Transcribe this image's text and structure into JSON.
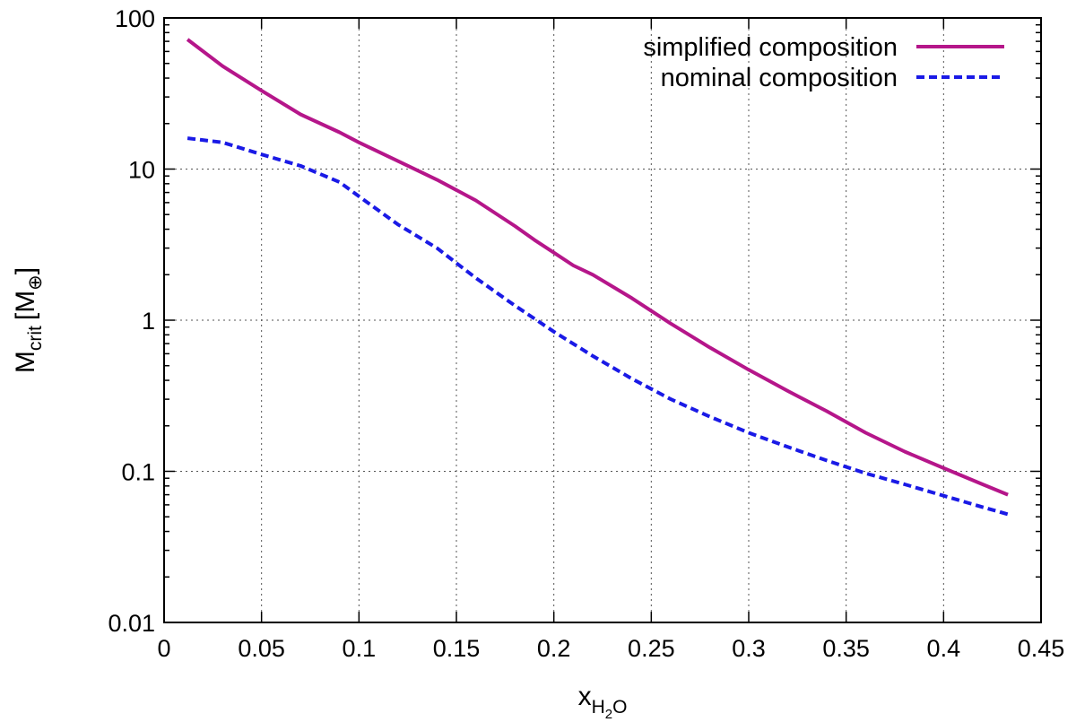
{
  "chart_data": {
    "type": "line",
    "title": "",
    "xlabel": {
      "main": "x",
      "sub": "H",
      "sub2": "2",
      "sub3": "O"
    },
    "ylabel": {
      "main": "M",
      "sub": "crit",
      "unit": "[M",
      "unit_sub": "⊕",
      "unit_end": "]"
    },
    "x_range": [
      0,
      0.45
    ],
    "y_range": [
      0.01,
      100
    ],
    "y_scale": "log",
    "grid": true,
    "legend_position": "top-right",
    "x_ticks": [
      {
        "value": 0,
        "label": "0"
      },
      {
        "value": 0.05,
        "label": "0.05"
      },
      {
        "value": 0.1,
        "label": "0.1"
      },
      {
        "value": 0.15,
        "label": "0.15"
      },
      {
        "value": 0.2,
        "label": "0.2"
      },
      {
        "value": 0.25,
        "label": "0.25"
      },
      {
        "value": 0.3,
        "label": "0.3"
      },
      {
        "value": 0.35,
        "label": "0.35"
      },
      {
        "value": 0.4,
        "label": "0.4"
      },
      {
        "value": 0.45,
        "label": "0.45"
      }
    ],
    "y_ticks": [
      {
        "value": 0.01,
        "label": "0.01"
      },
      {
        "value": 0.1,
        "label": "0.1"
      },
      {
        "value": 1,
        "label": "1"
      },
      {
        "value": 10,
        "label": "10"
      },
      {
        "value": 100,
        "label": "100"
      }
    ],
    "series": [
      {
        "name": "simplified composition",
        "color": "#b5168a",
        "style": "solid",
        "x": [
          0.012,
          0.03,
          0.05,
          0.07,
          0.09,
          0.1,
          0.12,
          0.14,
          0.16,
          0.18,
          0.19,
          0.2,
          0.21,
          0.22,
          0.24,
          0.26,
          0.28,
          0.3,
          0.32,
          0.34,
          0.36,
          0.38,
          0.4,
          0.42,
          0.433
        ],
        "y": [
          72,
          48,
          33,
          23,
          17.5,
          15,
          11.3,
          8.5,
          6.2,
          4.2,
          3.4,
          2.8,
          2.3,
          2.0,
          1.4,
          0.95,
          0.66,
          0.47,
          0.34,
          0.25,
          0.18,
          0.135,
          0.105,
          0.082,
          0.07
        ]
      },
      {
        "name": "nominal composition",
        "color": "#1a1ae6",
        "style": "dashed",
        "x": [
          0.012,
          0.03,
          0.05,
          0.07,
          0.09,
          0.1,
          0.12,
          0.14,
          0.16,
          0.18,
          0.2,
          0.22,
          0.24,
          0.26,
          0.28,
          0.3,
          0.32,
          0.34,
          0.36,
          0.38,
          0.4,
          0.42,
          0.433
        ],
        "y": [
          16,
          15,
          12.5,
          10.5,
          8.2,
          6.6,
          4.3,
          3.0,
          1.9,
          1.25,
          0.84,
          0.58,
          0.41,
          0.3,
          0.23,
          0.18,
          0.145,
          0.118,
          0.097,
          0.082,
          0.069,
          0.058,
          0.052
        ]
      }
    ]
  }
}
